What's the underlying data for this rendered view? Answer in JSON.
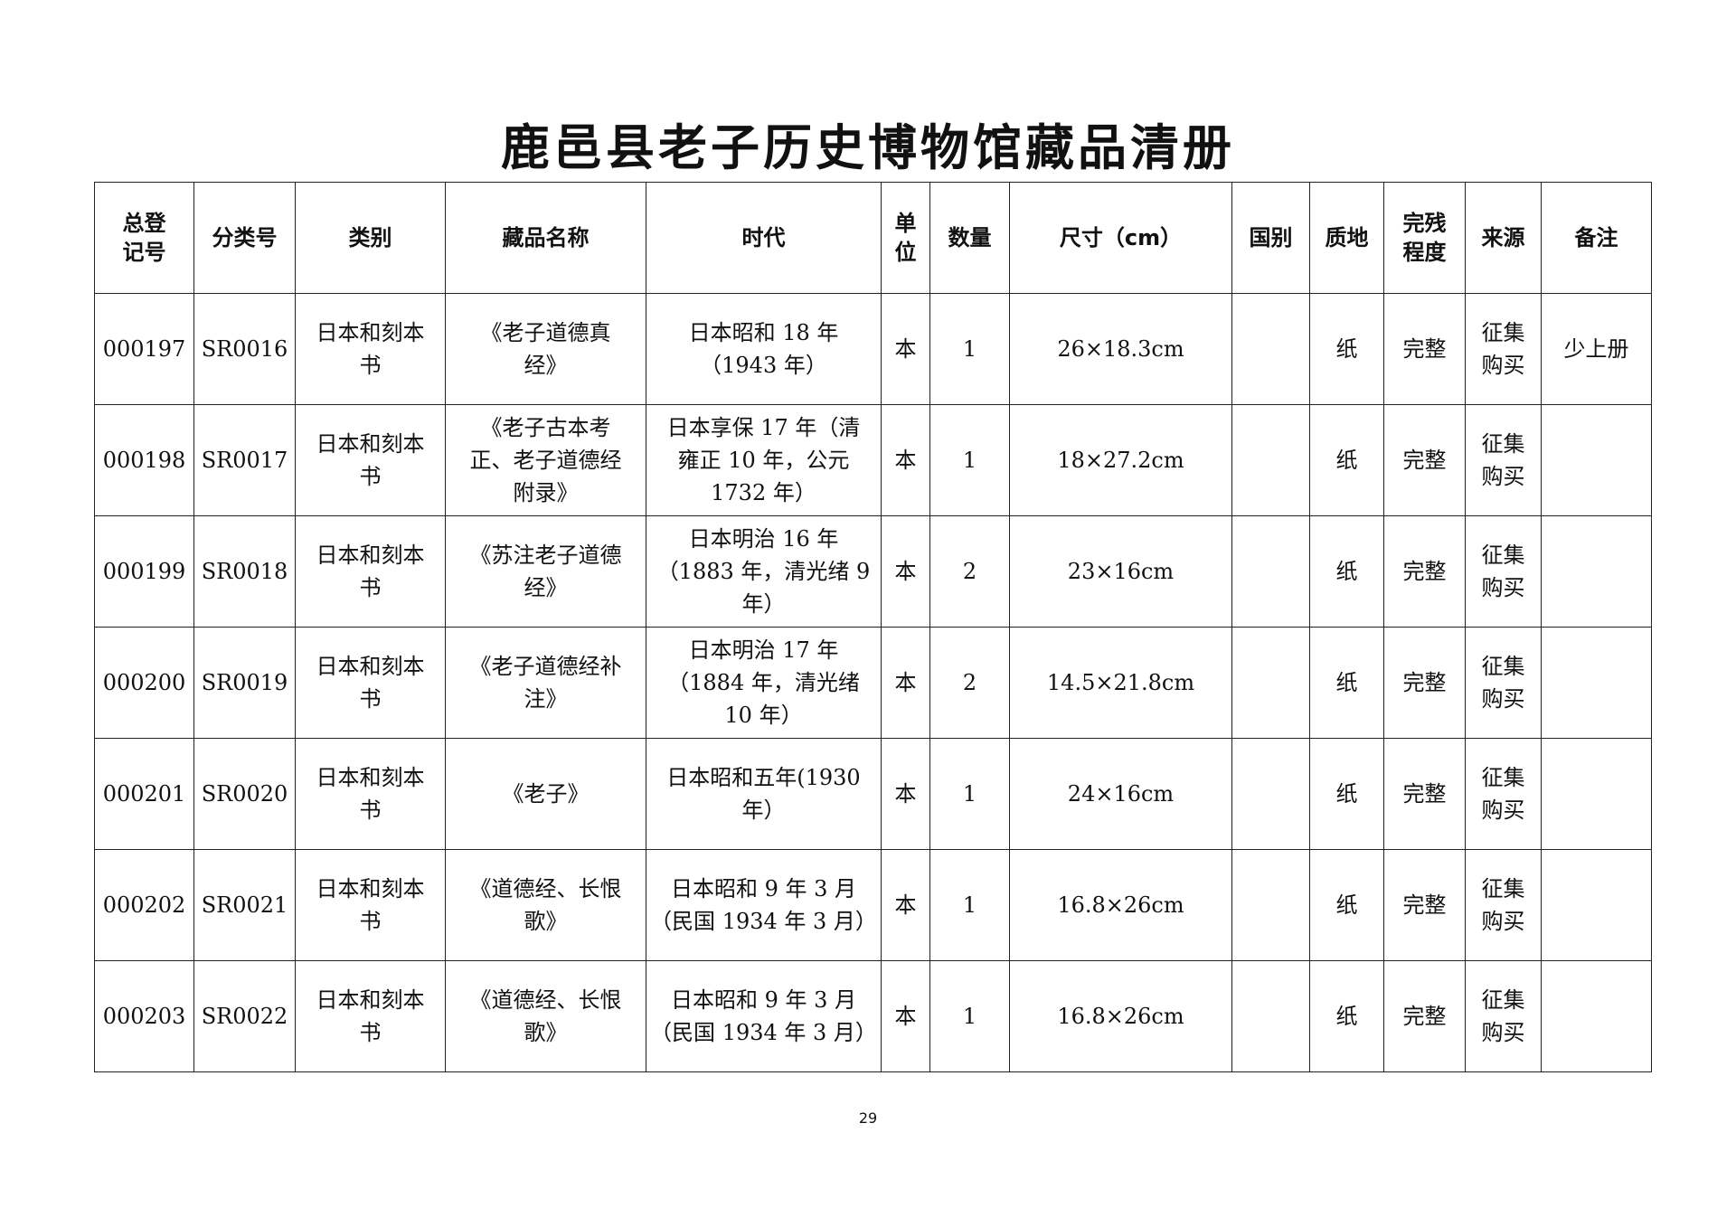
{
  "title": "鹿邑县老子历史博物馆藏品清册",
  "columns": [
    "总登\n记号",
    "分类号",
    "类别",
    "藏品名称",
    "时代",
    "单\n位",
    "数量",
    "尺寸（cm）",
    "国别",
    "质地",
    "完残\n程度",
    "来源",
    "备注"
  ],
  "rows": [
    {
      "reg_no": "000197",
      "class_no": "SR0016",
      "category": "日本和刻本\n书",
      "name": "《老子道德真\n经》",
      "era": "日本昭和 18 年\n（1943 年）",
      "unit": "本",
      "qty": "1",
      "size": "26×18.3cm",
      "country": "",
      "material": "纸",
      "condition": "完整",
      "source": "征集\n购买",
      "note": "少上册"
    },
    {
      "reg_no": "000198",
      "class_no": "SR0017",
      "category": "日本和刻本\n书",
      "name": "《老子古本考\n正、老子道德经\n附录》",
      "era": "日本享保 17 年（清\n雍正 10 年，公元\n1732 年）",
      "unit": "本",
      "qty": "1",
      "size": "18×27.2cm",
      "country": "",
      "material": "纸",
      "condition": "完整",
      "source": "征集\n购买",
      "note": ""
    },
    {
      "reg_no": "000199",
      "class_no": "SR0018",
      "category": "日本和刻本\n书",
      "name": "《苏注老子道德\n经》",
      "era": "日本明治 16 年\n（1883 年，清光绪 9\n年）",
      "unit": "本",
      "qty": "2",
      "size": "23×16cm",
      "country": "",
      "material": "纸",
      "condition": "完整",
      "source": "征集\n购买",
      "note": ""
    },
    {
      "reg_no": "000200",
      "class_no": "SR0019",
      "category": "日本和刻本\n书",
      "name": "《老子道德经补\n注》",
      "era": "日本明治 17 年\n（1884 年，清光绪\n10 年）",
      "unit": "本",
      "qty": "2",
      "size": "14.5×21.8cm",
      "country": "",
      "material": "纸",
      "condition": "完整",
      "source": "征集\n购买",
      "note": ""
    },
    {
      "reg_no": "000201",
      "class_no": "SR0020",
      "category": "日本和刻本\n书",
      "name": "《老子》",
      "era": "日本昭和五年(1930\n年）",
      "unit": "本",
      "qty": "1",
      "size": "24×16cm",
      "country": "",
      "material": "纸",
      "condition": "完整",
      "source": "征集\n购买",
      "note": ""
    },
    {
      "reg_no": "000202",
      "class_no": "SR0021",
      "category": "日本和刻本\n书",
      "name": "《道德经、长恨\n歌》",
      "era": "日本昭和 9 年 3 月\n（民国 1934 年 3 月）",
      "unit": "本",
      "qty": "1",
      "size": "16.8×26cm",
      "country": "",
      "material": "纸",
      "condition": "完整",
      "source": "征集\n购买",
      "note": ""
    },
    {
      "reg_no": "000203",
      "class_no": "SR0022",
      "category": "日本和刻本\n书",
      "name": "《道德经、长恨\n歌》",
      "era": "日本昭和 9 年 3 月\n（民国 1934 年 3 月）",
      "unit": "本",
      "qty": "1",
      "size": "16.8×26cm",
      "country": "",
      "material": "纸",
      "condition": "完整",
      "source": "征集\n购买",
      "note": ""
    }
  ],
  "page_number": "29"
}
